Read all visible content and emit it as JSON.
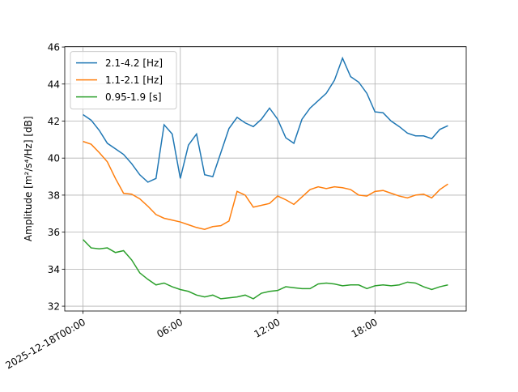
{
  "chart_data": {
    "type": "line",
    "ylabel": "Amplitude [m²/s⁴/Hz] [dB]",
    "x": [
      "2025-12-18T00:00",
      "2025-12-18T00:30",
      "2025-12-18T01:00",
      "2025-12-18T01:30",
      "2025-12-18T02:00",
      "2025-12-18T02:30",
      "2025-12-18T03:00",
      "2025-12-18T03:30",
      "2025-12-18T04:00",
      "2025-12-18T04:30",
      "2025-12-18T05:00",
      "2025-12-18T05:30",
      "2025-12-18T06:00",
      "2025-12-18T06:30",
      "2025-12-18T07:00",
      "2025-12-18T07:30",
      "2025-12-18T08:00",
      "2025-12-18T08:30",
      "2025-12-18T09:00",
      "2025-12-18T09:30",
      "2025-12-18T10:00",
      "2025-12-18T10:30",
      "2025-12-18T11:00",
      "2025-12-18T11:30",
      "2025-12-18T12:00",
      "2025-12-18T12:30",
      "2025-12-18T13:00",
      "2025-12-18T13:30",
      "2025-12-18T14:00",
      "2025-12-18T14:30",
      "2025-12-18T15:00",
      "2025-12-18T15:30",
      "2025-12-18T16:00",
      "2025-12-18T16:30",
      "2025-12-18T17:00",
      "2025-12-18T17:30",
      "2025-12-18T18:00",
      "2025-12-18T18:30",
      "2025-12-18T19:00",
      "2025-12-18T19:30",
      "2025-12-18T20:00",
      "2025-12-18T20:30",
      "2025-12-18T21:00",
      "2025-12-18T21:30",
      "2025-12-18T22:00",
      "2025-12-18T22:30"
    ],
    "series": [
      {
        "name": "2.1-4.2 [Hz]",
        "color": "#1f77b4",
        "values": [
          42.35,
          42.05,
          41.5,
          40.8,
          40.5,
          40.2,
          39.7,
          39.1,
          38.7,
          38.9,
          41.8,
          41.3,
          38.9,
          40.7,
          41.3,
          39.1,
          39.0,
          40.3,
          41.6,
          42.2,
          41.9,
          41.7,
          42.1,
          42.7,
          42.1,
          41.1,
          40.8,
          42.1,
          42.7,
          43.1,
          43.5,
          44.2,
          45.4,
          44.4,
          44.1,
          43.5,
          42.5,
          42.45,
          42.0,
          41.7,
          41.35,
          41.2,
          41.2,
          41.05,
          41.55,
          41.75
        ]
      },
      {
        "name": "1.1-2.1 [Hz]",
        "color": "#ff7f0e",
        "values": [
          40.9,
          40.75,
          40.3,
          39.8,
          38.9,
          38.1,
          38.05,
          37.8,
          37.4,
          36.95,
          36.75,
          36.65,
          36.55,
          36.4,
          36.25,
          36.15,
          36.3,
          36.35,
          36.6,
          38.2,
          38.0,
          37.35,
          37.45,
          37.55,
          37.95,
          37.75,
          37.5,
          37.9,
          38.3,
          38.45,
          38.35,
          38.45,
          38.4,
          38.3,
          38.0,
          37.95,
          38.2,
          38.25,
          38.1,
          37.95,
          37.85,
          38.0,
          38.05,
          37.85,
          38.3,
          38.6
        ]
      },
      {
        "name": "0.95-1.9 [s]",
        "color": "#2ca02c",
        "values": [
          35.6,
          35.15,
          35.1,
          35.15,
          34.9,
          35.0,
          34.5,
          33.8,
          33.45,
          33.15,
          33.25,
          33.05,
          32.9,
          32.8,
          32.6,
          32.5,
          32.6,
          32.4,
          32.45,
          32.5,
          32.6,
          32.4,
          32.7,
          32.8,
          32.85,
          33.05,
          33.0,
          32.95,
          32.95,
          33.2,
          33.25,
          33.2,
          33.1,
          33.15,
          33.15,
          32.95,
          33.1,
          33.15,
          33.1,
          33.15,
          33.3,
          33.25,
          33.05,
          32.9,
          33.05,
          33.15
        ]
      }
    ],
    "xlim": [
      "2025-12-17T22:52:30",
      "2025-12-18T23:37:30"
    ],
    "xticks": [
      "2025-12-18T00:00",
      {
        "value": "2025-12-18T06:00",
        "label": "06:00"
      },
      {
        "value": "2025-12-18T12:00",
        "label": "12:00"
      },
      {
        "value": "2025-12-18T18:00",
        "label": "18:00"
      }
    ],
    "ylim": [
      31.74,
      46.02
    ],
    "yticks": [
      32,
      34,
      36,
      38,
      40,
      42,
      44,
      46
    ],
    "grid": true,
    "legend": "upper-left"
  }
}
